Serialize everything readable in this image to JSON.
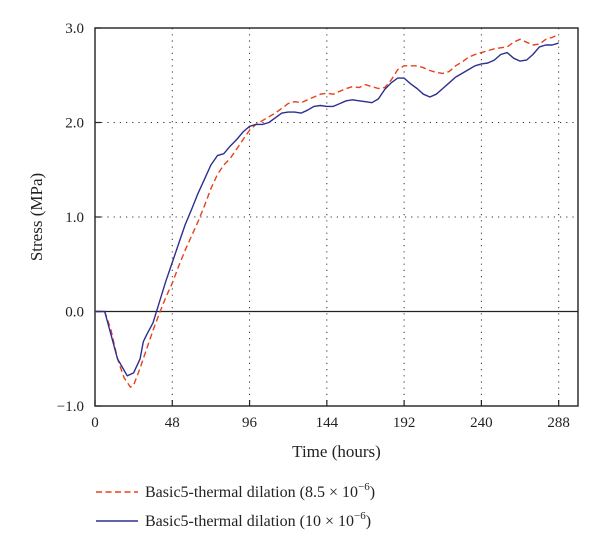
{
  "chart_data": {
    "type": "line",
    "xlabel": "Time (hours)",
    "ylabel": "Stress (MPa)",
    "xlim": [
      0,
      300
    ],
    "ylim": [
      -1.0,
      3.0
    ],
    "x_ticks": [
      0,
      48,
      96,
      144,
      192,
      240,
      288
    ],
    "x_tick_labels": [
      "0",
      "48",
      "96",
      "144",
      "192",
      "240",
      "288"
    ],
    "y_ticks": [
      -1.0,
      0.0,
      1.0,
      2.0,
      3.0
    ],
    "y_tick_labels": [
      "−1.0",
      "0.0",
      "1.0",
      "2.0",
      "3.0"
    ],
    "grid": "dotted",
    "legend_position": "bottom",
    "series": [
      {
        "name": "Basic5-thermal dilation (8.5 × 10",
        "exponent": "−6",
        "name_suffix": ")",
        "color": "#e8401c",
        "style": "dashed",
        "x": [
          0,
          6,
          10,
          14,
          18,
          22,
          24,
          28,
          32,
          36,
          40,
          44,
          48,
          52,
          56,
          60,
          64,
          68,
          72,
          76,
          80,
          84,
          88,
          92,
          96,
          100,
          104,
          108,
          112,
          116,
          120,
          124,
          128,
          132,
          136,
          140,
          144,
          148,
          152,
          156,
          160,
          164,
          168,
          172,
          176,
          180,
          184,
          188,
          192,
          196,
          200,
          204,
          208,
          212,
          216,
          220,
          224,
          228,
          232,
          236,
          240,
          244,
          248,
          252,
          256,
          260,
          264,
          268,
          272,
          276,
          280,
          284,
          288
        ],
        "y": [
          0.0,
          0.0,
          -0.2,
          -0.5,
          -0.7,
          -0.8,
          -0.78,
          -0.6,
          -0.4,
          -0.2,
          -0.02,
          0.15,
          0.3,
          0.48,
          0.65,
          0.8,
          0.95,
          1.12,
          1.3,
          1.45,
          1.55,
          1.62,
          1.72,
          1.82,
          1.92,
          1.98,
          2.02,
          2.06,
          2.1,
          2.15,
          2.2,
          2.22,
          2.21,
          2.24,
          2.27,
          2.3,
          2.31,
          2.3,
          2.33,
          2.36,
          2.38,
          2.37,
          2.4,
          2.38,
          2.36,
          2.37,
          2.45,
          2.56,
          2.6,
          2.6,
          2.6,
          2.58,
          2.55,
          2.53,
          2.52,
          2.54,
          2.6,
          2.64,
          2.69,
          2.72,
          2.74,
          2.76,
          2.78,
          2.79,
          2.8,
          2.85,
          2.88,
          2.85,
          2.82,
          2.83,
          2.88,
          2.9,
          2.93
        ]
      },
      {
        "name": "Basic5-thermal dilation (10 × 10",
        "exponent": "−6",
        "name_suffix": ")",
        "color": "#2d2f8f",
        "style": "solid",
        "x": [
          0,
          6,
          10,
          14,
          18,
          20,
          24,
          28,
          30,
          32,
          36,
          40,
          44,
          48,
          52,
          56,
          60,
          64,
          68,
          72,
          76,
          80,
          84,
          88,
          92,
          96,
          100,
          104,
          108,
          112,
          116,
          120,
          124,
          128,
          132,
          136,
          140,
          144,
          148,
          152,
          156,
          160,
          164,
          168,
          172,
          176,
          180,
          184,
          188,
          192,
          196,
          200,
          204,
          208,
          212,
          216,
          220,
          224,
          228,
          232,
          236,
          240,
          244,
          248,
          252,
          256,
          260,
          264,
          268,
          272,
          276,
          280,
          284,
          288
        ],
        "y": [
          0.0,
          0.0,
          -0.25,
          -0.5,
          -0.62,
          -0.68,
          -0.65,
          -0.5,
          -0.32,
          -0.25,
          -0.12,
          0.1,
          0.32,
          0.52,
          0.72,
          0.92,
          1.08,
          1.25,
          1.4,
          1.55,
          1.65,
          1.67,
          1.75,
          1.82,
          1.9,
          1.96,
          1.98,
          1.98,
          2.0,
          2.05,
          2.1,
          2.11,
          2.11,
          2.1,
          2.13,
          2.17,
          2.18,
          2.17,
          2.17,
          2.2,
          2.23,
          2.24,
          2.23,
          2.22,
          2.21,
          2.25,
          2.35,
          2.42,
          2.47,
          2.47,
          2.41,
          2.36,
          2.3,
          2.27,
          2.3,
          2.36,
          2.42,
          2.48,
          2.52,
          2.56,
          2.6,
          2.62,
          2.63,
          2.66,
          2.72,
          2.74,
          2.68,
          2.65,
          2.66,
          2.72,
          2.8,
          2.82,
          2.82,
          2.84
        ]
      }
    ]
  }
}
